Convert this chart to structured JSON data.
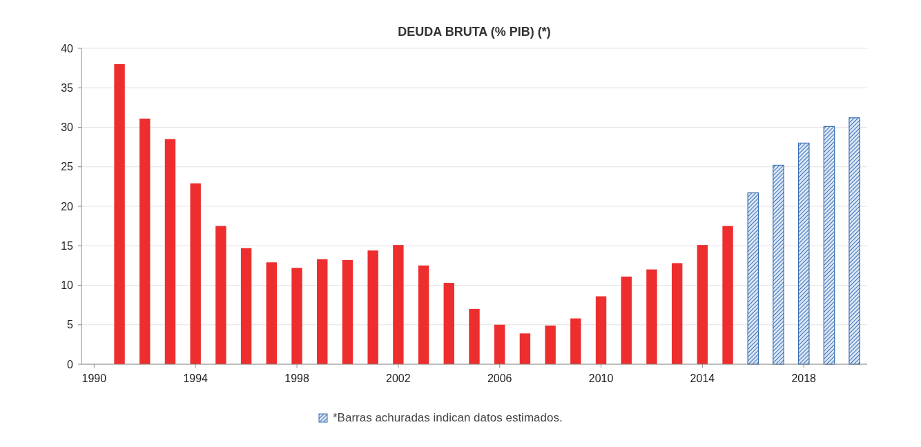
{
  "chart_data": {
    "type": "bar",
    "title": "DEUDA BRUTA (% PIB) (*)",
    "xlim": [
      1989.5,
      2020.5
    ],
    "xticks": [
      1990,
      1994,
      1998,
      2002,
      2006,
      2010,
      2014,
      2018
    ],
    "ylim": [
      0,
      40
    ],
    "yticks": [
      0,
      5,
      10,
      15,
      20,
      25,
      30,
      35,
      40
    ],
    "grid": "y",
    "legend": "bottom",
    "series": [
      {
        "color": "#ee2e2e",
        "x": [
          1991,
          1992,
          1993,
          1994,
          1995,
          1996,
          1997,
          1998,
          1999,
          2000,
          2001,
          2002,
          2003,
          2004,
          2005,
          2006,
          2007,
          2008,
          2009,
          2010,
          2011,
          2012,
          2013,
          2014,
          2015
        ],
        "values": [
          38,
          31.1,
          28.5,
          22.9,
          17.5,
          14.7,
          12.9,
          12.2,
          13.3,
          13.2,
          14.4,
          15.1,
          12.5,
          10.3,
          7,
          5,
          3.9,
          4.9,
          5.8,
          8.6,
          11.1,
          12,
          12.8,
          15.1,
          17.5
        ]
      },
      {
        "name": "*Barras achuradas indican datos estimados.",
        "color": "#3a6fb5",
        "x": [
          2016,
          2017,
          2018,
          2019,
          2020
        ],
        "values": [
          21.7,
          25.2,
          28,
          30.1,
          31.2
        ]
      }
    ]
  }
}
